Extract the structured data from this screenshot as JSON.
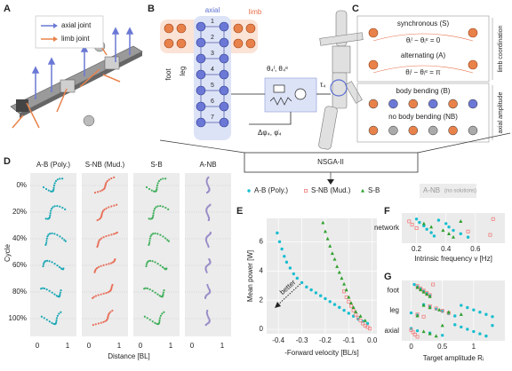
{
  "panels": {
    "labels": [
      "A",
      "B",
      "C",
      "D",
      "E",
      "F",
      "G"
    ],
    "a": {
      "legend": [
        "axial joint",
        "limb joint"
      ]
    },
    "b": {
      "axial": "axial",
      "limb": "limb",
      "foot": "foot",
      "leg": "leg",
      "segments": [
        "1",
        "2",
        "3",
        "4",
        "5",
        "6",
        "7"
      ],
      "setpoint": "θ₄ˡ, θ₄ᵉ",
      "torque": "τ₄",
      "feedback": "Δφ₄, φ̇₄"
    },
    "c": {
      "synchronous": "synchronous (S)",
      "sync_eq": "θᵢˡ − θᵢᵉ = 0",
      "alternating": "alternating (A)",
      "alt_eq": "θᵢˡ − θᵢᵉ = π",
      "bending": "body bending (B)",
      "no_bending": "no body bending (NB)",
      "limb_coordination": "limb coordination",
      "axial_amplitude": "axial amplitude"
    },
    "optimizer": "NSGA-II",
    "d": {
      "columns": [
        "A-B (Poly.)",
        "S-NB (Mud.)",
        "S-B",
        "A-NB"
      ],
      "colors": [
        "#1aa7b5",
        "#e8705a",
        "#3fae5a",
        "#9a8cc8"
      ],
      "rows": [
        "0%",
        "20%",
        "40%",
        "60%",
        "80%",
        "100%"
      ],
      "ylabel": "Cycle",
      "xlabel": "Distance [BL]",
      "xticks": [
        0,
        1
      ]
    }
  },
  "chart_data": [
    {
      "type": "scatter",
      "xlabel": "-Forward velocity [BL/s]",
      "ylabel": "Mean power [W]",
      "annotation": "better",
      "xlim": [
        -0.45,
        0.02
      ],
      "ylim": [
        -0.3,
        7.6
      ],
      "xticks": [
        -0.4,
        -0.3,
        -0.2,
        -0.1,
        {
          "value": 0,
          "label": "0.0"
        }
      ],
      "yticks": [
        0,
        2,
        4,
        6
      ],
      "grid": true,
      "legend_extra": {
        "name": "A-NB",
        "note": "(no solutions)"
      },
      "series": [
        {
          "name": "A-B (Poly.)",
          "color": "#17becf",
          "marker": "circle",
          "x": [
            -0.405,
            -0.395,
            -0.385,
            -0.375,
            -0.365,
            -0.35,
            -0.335,
            -0.32,
            -0.3,
            -0.28,
            -0.26,
            -0.24,
            -0.22,
            -0.2,
            -0.18,
            -0.16,
            -0.14,
            -0.12,
            -0.1,
            -0.08,
            -0.06,
            -0.04,
            -0.02
          ],
          "values": [
            6.6,
            6.0,
            5.5,
            5.0,
            4.6,
            4.2,
            3.8,
            3.5,
            3.2,
            2.9,
            2.7,
            2.5,
            2.3,
            2.1,
            1.9,
            1.7,
            1.5,
            1.3,
            1.1,
            0.9,
            0.7,
            0.55,
            0.4
          ]
        },
        {
          "name": "S-NB (Mud.)",
          "color": "#f08080",
          "marker": "square",
          "x": [
            -0.12,
            -0.11,
            -0.1,
            -0.09,
            -0.08,
            -0.07,
            -0.06,
            -0.05,
            -0.04,
            -0.03,
            -0.02,
            -0.01
          ],
          "values": [
            2.6,
            2.2,
            1.9,
            1.6,
            1.3,
            1.0,
            0.8,
            0.6,
            0.4,
            0.25,
            0.15,
            0.05
          ]
        },
        {
          "name": "S-B",
          "color": "#2ca02c",
          "marker": "triangle",
          "x": [
            -0.21,
            -0.2,
            -0.19,
            -0.18,
            -0.17,
            -0.16,
            -0.15,
            -0.14,
            -0.13,
            -0.12,
            -0.11,
            -0.1,
            -0.09,
            -0.08,
            -0.07,
            -0.05,
            -0.03
          ],
          "values": [
            7.3,
            6.7,
            6.2,
            5.7,
            5.2,
            4.8,
            4.3,
            3.9,
            3.5,
            3.1,
            2.7,
            2.2,
            1.8,
            1.5,
            1.2,
            0.9,
            0.6
          ]
        }
      ]
    },
    {
      "type": "strip",
      "xlabel": "Intrinsic frequency v [Hz]",
      "categories": [
        "network"
      ],
      "xlim": [
        0.1,
        0.8
      ],
      "xticks": [
        0.2,
        0.4,
        0.6
      ],
      "grid": true,
      "series": [
        {
          "name": "A-B (Poly.)",
          "color": "#17becf",
          "marker": "circle",
          "values": [
            [
              0.2,
              0.22,
              0.25,
              0.27,
              0.3,
              0.32,
              0.35,
              0.4,
              0.42,
              0.45,
              0.5,
              0.55
            ]
          ]
        },
        {
          "name": "S-NB (Mud.)",
          "color": "#f08080",
          "marker": "square",
          "values": [
            [
              0.15,
              0.17,
              0.2,
              0.55,
              0.7,
              0.72
            ]
          ]
        },
        {
          "name": "S-B",
          "color": "#2ca02c",
          "marker": "triangle",
          "values": [
            [
              0.25,
              0.3,
              0.38,
              0.42,
              0.45,
              0.5
            ]
          ]
        }
      ]
    },
    {
      "type": "strip",
      "xlabel": "Target amplitude Rᵢ",
      "categories": [
        "foot",
        "leg",
        "axial"
      ],
      "xlim": [
        -0.15,
        1.5
      ],
      "xticks": [
        0,
        0.5,
        1
      ],
      "grid": true,
      "series": [
        {
          "name": "A-B (Poly.)",
          "color": "#17becf",
          "marker": "circle",
          "values": [
            [
              0.05,
              0.1,
              0.15,
              0.2,
              0.25,
              0.3
            ],
            [
              0.0,
              0.1,
              0.2,
              0.3,
              0.4,
              0.5,
              0.6,
              0.7,
              0.8,
              0.9,
              1.0,
              1.1,
              1.2,
              1.3
            ],
            [
              0.0,
              0.1,
              0.3,
              0.5,
              0.7,
              0.8,
              0.9,
              1.0,
              1.1,
              1.2,
              1.3
            ]
          ]
        },
        {
          "name": "S-NB (Mud.)",
          "color": "#f08080",
          "marker": "square",
          "values": [
            [
              0.1,
              0.15,
              0.2,
              0.25,
              0.3,
              0.35
            ],
            [
              0.1,
              0.2,
              0.3,
              0.4,
              0.5,
              0.6
            ],
            [
              0.0,
              0.03,
              0.06,
              0.1
            ]
          ]
        },
        {
          "name": "S-B",
          "color": "#2ca02c",
          "marker": "triangle",
          "values": [
            [
              0.1,
              0.15,
              0.2,
              0.25,
              0.3
            ],
            [
              0.1,
              0.2,
              0.3,
              0.45,
              0.6,
              0.8
            ],
            [
              0.2,
              0.3,
              0.4,
              0.5
            ]
          ]
        }
      ]
    }
  ]
}
